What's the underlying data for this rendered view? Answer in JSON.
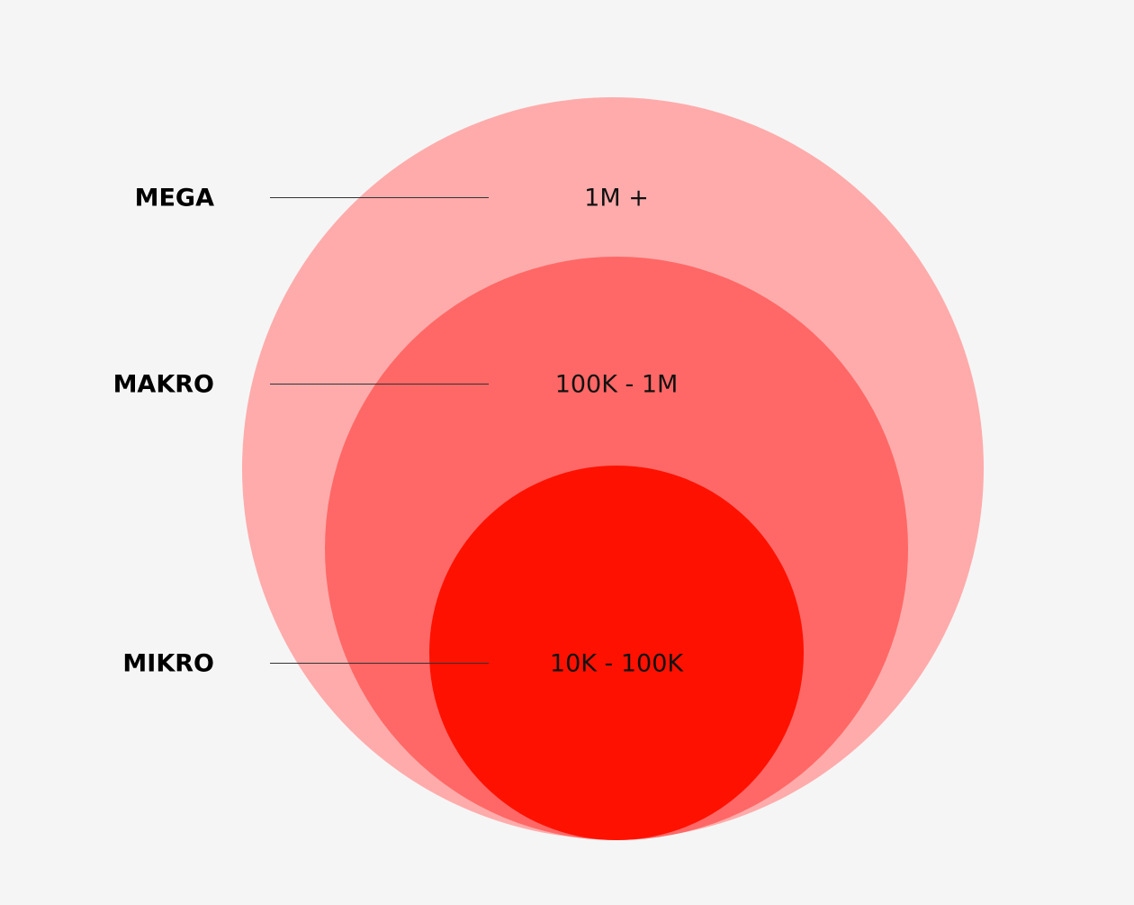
{
  "tiers": [
    {
      "label": "MEGA",
      "range": "1M +"
    },
    {
      "label": "MAKRO",
      "range": "100K - 1M"
    },
    {
      "label": "MIKRO",
      "range": "10K - 100K"
    }
  ]
}
